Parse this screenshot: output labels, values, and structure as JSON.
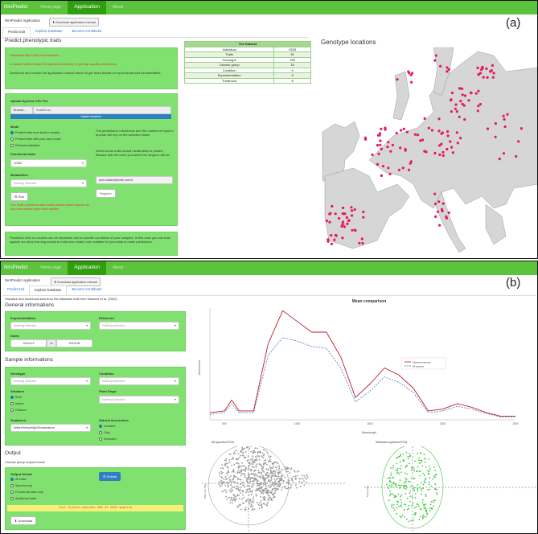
{
  "nav": {
    "brand": "NirsPredict",
    "tabs": [
      "Home page",
      "Application",
      "About"
    ]
  },
  "a": {
    "tag": "(a)",
    "subtitle": "NirsPredict Application",
    "manual": "Download application manual",
    "tabs": [
      "Predict trait",
      "Explore Database",
      "Become Contributor"
    ],
    "heading": "Predict phenotypic traits",
    "notice1": "Submitted files must have headers",
    "notice2": "A dataset with at least 100 spectra is advised to get high-quality predictions",
    "notice3": "Download and consult the application manual above to get more details on input format and functionalities",
    "upload_label": "Upload Spectra CSV File",
    "browse": "Browse...",
    "file": "Xcal85.csv",
    "progress": "Upload complete",
    "mode_label": "Mode",
    "modes": [
      "Predict traits from built-in models",
      "Predict traits with your own model",
      "External validation"
    ],
    "mode_selected": 0,
    "mode_help": "The prediction's robustness and the number of input to provide will rely on the selected mode.",
    "func_label": "Functional traits",
    "func_value": "LDMC",
    "func_help": "Select some traits or/and metabolites to predict. Beware that the more you select the longer it will be.",
    "meta_label": "Metabolites",
    "meta_placeholder": "Nothing selected",
    "run": "Run",
    "email_value": "axel.vaillant@cefe.cnrs.fr",
    "email_warn": "You must provide a valid email adress before launch so you can receive your run's results",
    "register": "Register",
    "footer_note": "Prediction with our models can be imprecise due to specific conditions of your samples. In this case you can train against our deep learning scripts to build new model more suitable for your data to make predictions.",
    "dataset": {
      "title": "The Dataset",
      "rows": [
        [
          "Individual",
          "5325"
        ],
        [
          "Traits",
          "81"
        ],
        [
          "Genotype",
          "295"
        ],
        [
          "Genetic group",
          "16"
        ],
        [
          "Condition",
          "4"
        ],
        [
          "Experimentation",
          "9"
        ],
        [
          "Treatment",
          "8"
        ]
      ]
    },
    "map_title": "Genotype locations"
  },
  "b": {
    "tag": "(b)",
    "subtitle": "NirsPredict Application",
    "manual": "Download application manual",
    "tabs": [
      "Predict trait",
      "Explore Database",
      "Become Contributor"
    ],
    "intro": "Visualize and download data from the database built from Vasseur et al. (2022)",
    "general": "General informations",
    "exp_label": "Experimentation",
    "exp_ph": "Nothing selected",
    "ref_label": "Reference",
    "ref_ph": "Nothing selected",
    "dates_label": "Dates",
    "date_from": "2014-01",
    "date_to": "2019-08",
    "date_sep": "to",
    "sample": "Sample informations",
    "geno_label": "Genotype",
    "geno_ph": "Nothing selected",
    "cond_label": "Condition",
    "cond_ph": "Nothing selected",
    "situ_label": "Situation",
    "situ": [
      "Both",
      "Indoor",
      "Outdoor"
    ],
    "stage_label": "Plant Stage",
    "stage_ph": "Nothing selected",
    "treat_label": "Treatment",
    "treat_value": "WaterStress/HighTemperature",
    "nat_label": "Natural Accessions",
    "nat": [
      "Included",
      "Only",
      "Excluded"
    ],
    "output": "Output",
    "output_sub": "Choose query output format",
    "format_label": "Output format",
    "formats": [
      "All Data",
      "Spectra only",
      "Functional traits only",
      "Additional traits"
    ],
    "submit": "Submit",
    "match": "Your filters matches 266 of 5325 spectra",
    "download": "Download",
    "chart_title": "Mean comparison",
    "legend": [
      "Selected spectra",
      "All spectra"
    ],
    "xlab": "Wavelength",
    "ylab": "Absorbance",
    "pca1": "All spectra PCA",
    "pca2": "Selected spectra PCA",
    "pca_axis": "Dim2 (37.7%)",
    "pca_axis2": "Dim2 (x%)"
  },
  "chart_data": [
    {
      "type": "line",
      "title": "Mean comparison",
      "xlabel": "Wavelength",
      "ylabel": "Absorbance",
      "x": [
        400,
        500,
        550,
        600,
        700,
        800,
        900,
        1000,
        1100,
        1200,
        1300,
        1400,
        1500,
        1600,
        1700,
        1800,
        1900,
        2000,
        2100,
        2200,
        2300,
        2400,
        2500
      ],
      "series": [
        {
          "name": "Selected spectra",
          "values": [
            0.28,
            0.3,
            0.42,
            0.3,
            0.3,
            1.05,
            1.42,
            1.3,
            1.18,
            1.18,
            0.9,
            0.45,
            0.6,
            0.78,
            0.7,
            0.55,
            0.3,
            0.32,
            0.38,
            0.34,
            0.28,
            0.24,
            0.24
          ]
        },
        {
          "name": "All spectra",
          "values": [
            0.26,
            0.28,
            0.38,
            0.28,
            0.28,
            0.92,
            1.12,
            1.08,
            1.02,
            1.0,
            0.78,
            0.4,
            0.52,
            0.68,
            0.62,
            0.5,
            0.28,
            0.3,
            0.35,
            0.32,
            0.27,
            0.23,
            0.23
          ]
        }
      ],
      "xticks": [
        500,
        1000,
        1500,
        2000,
        2500
      ]
    }
  ]
}
